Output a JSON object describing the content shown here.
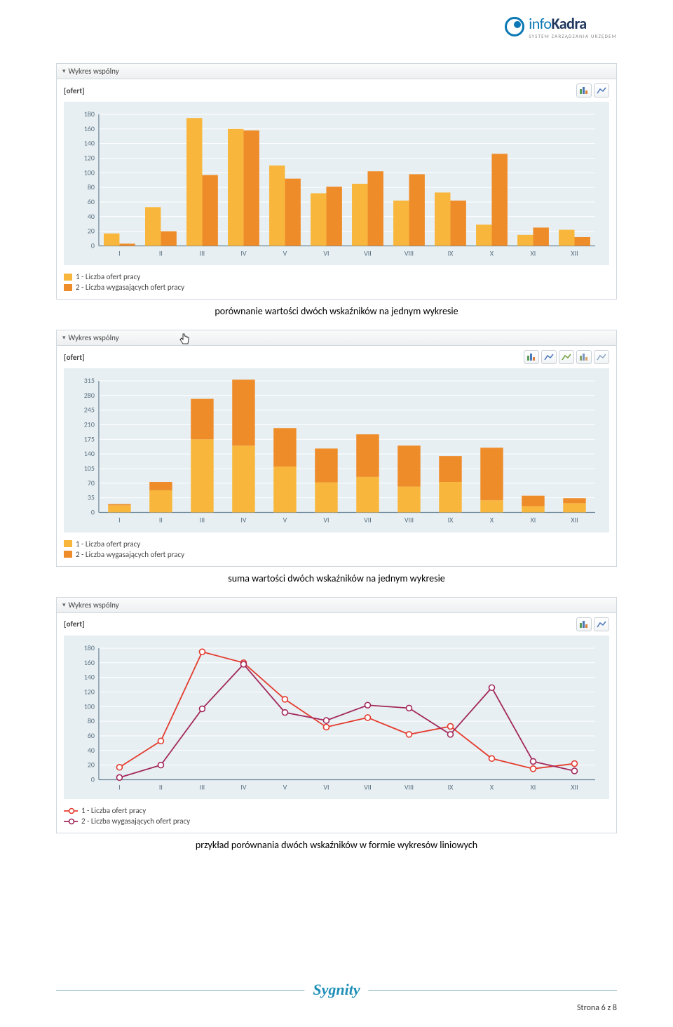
{
  "header": {
    "logo_prefix": "info",
    "logo_main": "Kadra",
    "logo_sub": "SYSTEM ZARZĄDZANIA URZĘDEM"
  },
  "chart1": {
    "type": "bar",
    "panel_title": "Wykres wspólny",
    "ylabel": "[ofert]",
    "categories": [
      "I",
      "II",
      "III",
      "IV",
      "V",
      "VI",
      "VII",
      "VIII",
      "IX",
      "X",
      "XI",
      "XII"
    ],
    "series": [
      {
        "name": "1 - Liczba ofert pracy",
        "color": "#f8b73c",
        "values": [
          17,
          53,
          175,
          160,
          110,
          72,
          85,
          62,
          73,
          29,
          15,
          22
        ]
      },
      {
        "name": "2 - Liczba wygasających ofert pracy",
        "color": "#ef8c2a",
        "values": [
          3,
          20,
          97,
          158,
          92,
          81,
          102,
          98,
          62,
          126,
          25,
          12
        ]
      }
    ],
    "ylim": [
      0,
      180
    ],
    "ytick_step": 20,
    "background": "#e7eff2",
    "grid_color": "#ffffff",
    "axis_color": "#6d879a",
    "bar_width": 0.38
  },
  "caption1": "porównanie wartości dwóch wskaźników na jednym wykresie",
  "chart2": {
    "type": "bar-stacked",
    "panel_title": "Wykres wspólny",
    "ylabel": "[ofert]",
    "categories": [
      "I",
      "II",
      "III",
      "IV",
      "V",
      "VI",
      "VII",
      "VIII",
      "IX",
      "X",
      "XI",
      "XII"
    ],
    "series": [
      {
        "name": "1 - Liczba ofert pracy",
        "color": "#f8b73c",
        "values": [
          17,
          53,
          175,
          160,
          110,
          72,
          85,
          62,
          73,
          29,
          15,
          22
        ]
      },
      {
        "name": "2 - Liczba wygasających ofert pracy",
        "color": "#ef8c2a",
        "values": [
          3,
          20,
          97,
          158,
          92,
          81,
          102,
          98,
          62,
          126,
          25,
          12
        ]
      }
    ],
    "ylim": [
      0,
      315
    ],
    "ytick_step": 35,
    "background": "#e7eff2",
    "grid_color": "#ffffff",
    "axis_color": "#6d879a",
    "bar_width": 0.55
  },
  "caption2": "suma wartości dwóch wskaźników na jednym wykresie",
  "chart3": {
    "type": "line",
    "panel_title": "Wykres wspólny",
    "ylabel": "[ofert]",
    "categories": [
      "I",
      "II",
      "III",
      "IV",
      "V",
      "VI",
      "VII",
      "VIII",
      "IX",
      "X",
      "XI",
      "XII"
    ],
    "series": [
      {
        "name": "1 - Liczba ofert pracy",
        "color": "#e43b2e",
        "values": [
          17,
          53,
          175,
          160,
          110,
          72,
          85,
          62,
          73,
          29,
          15,
          22
        ]
      },
      {
        "name": "2 - Liczba wygasających ofert pracy",
        "color": "#a2285c",
        "values": [
          3,
          20,
          97,
          158,
          92,
          81,
          102,
          98,
          62,
          126,
          25,
          12
        ]
      }
    ],
    "ylim": [
      0,
      180
    ],
    "ytick_step": 20,
    "background": "#e7eff2",
    "grid_color": "#ffffff",
    "axis_color": "#6d879a",
    "marker": "circle",
    "marker_size": 4,
    "line_width": 1.8
  },
  "caption3": "przykład porównania dwóch wskaźników w formie wykresów liniowych",
  "footer": {
    "company": "Sygnity",
    "page_label": "Strona 6 z 8"
  },
  "icon_buttons": {
    "bar_chart": "bar-chart-icon",
    "line_chart": "line-chart-icon"
  }
}
